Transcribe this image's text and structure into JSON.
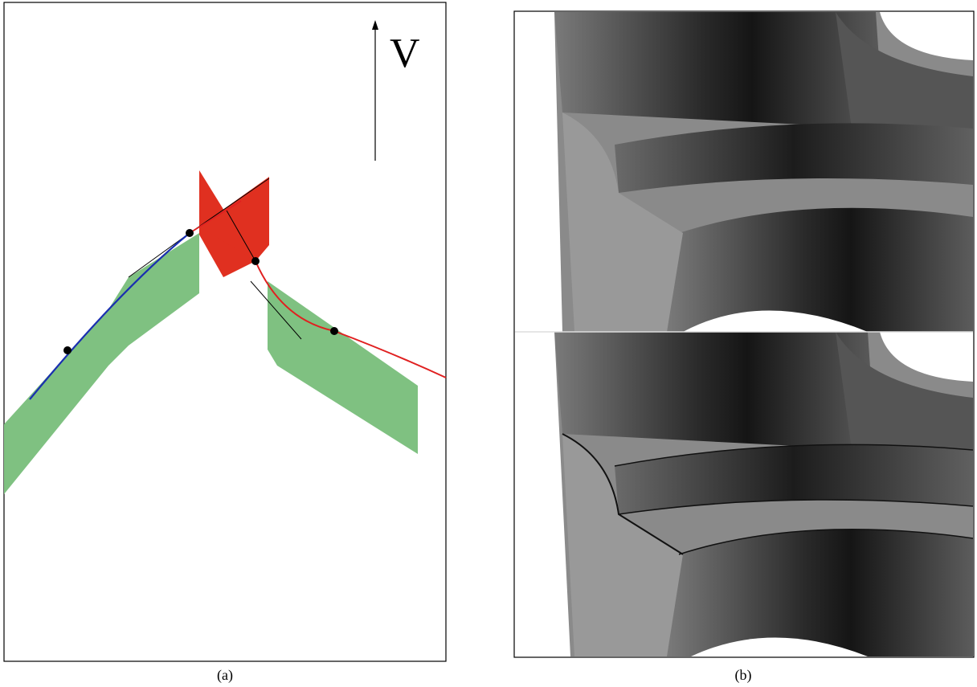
{
  "figure": {
    "panels": [
      {
        "label": "(a)",
        "axis_label": "V"
      },
      {
        "label": "(b)"
      }
    ]
  }
}
